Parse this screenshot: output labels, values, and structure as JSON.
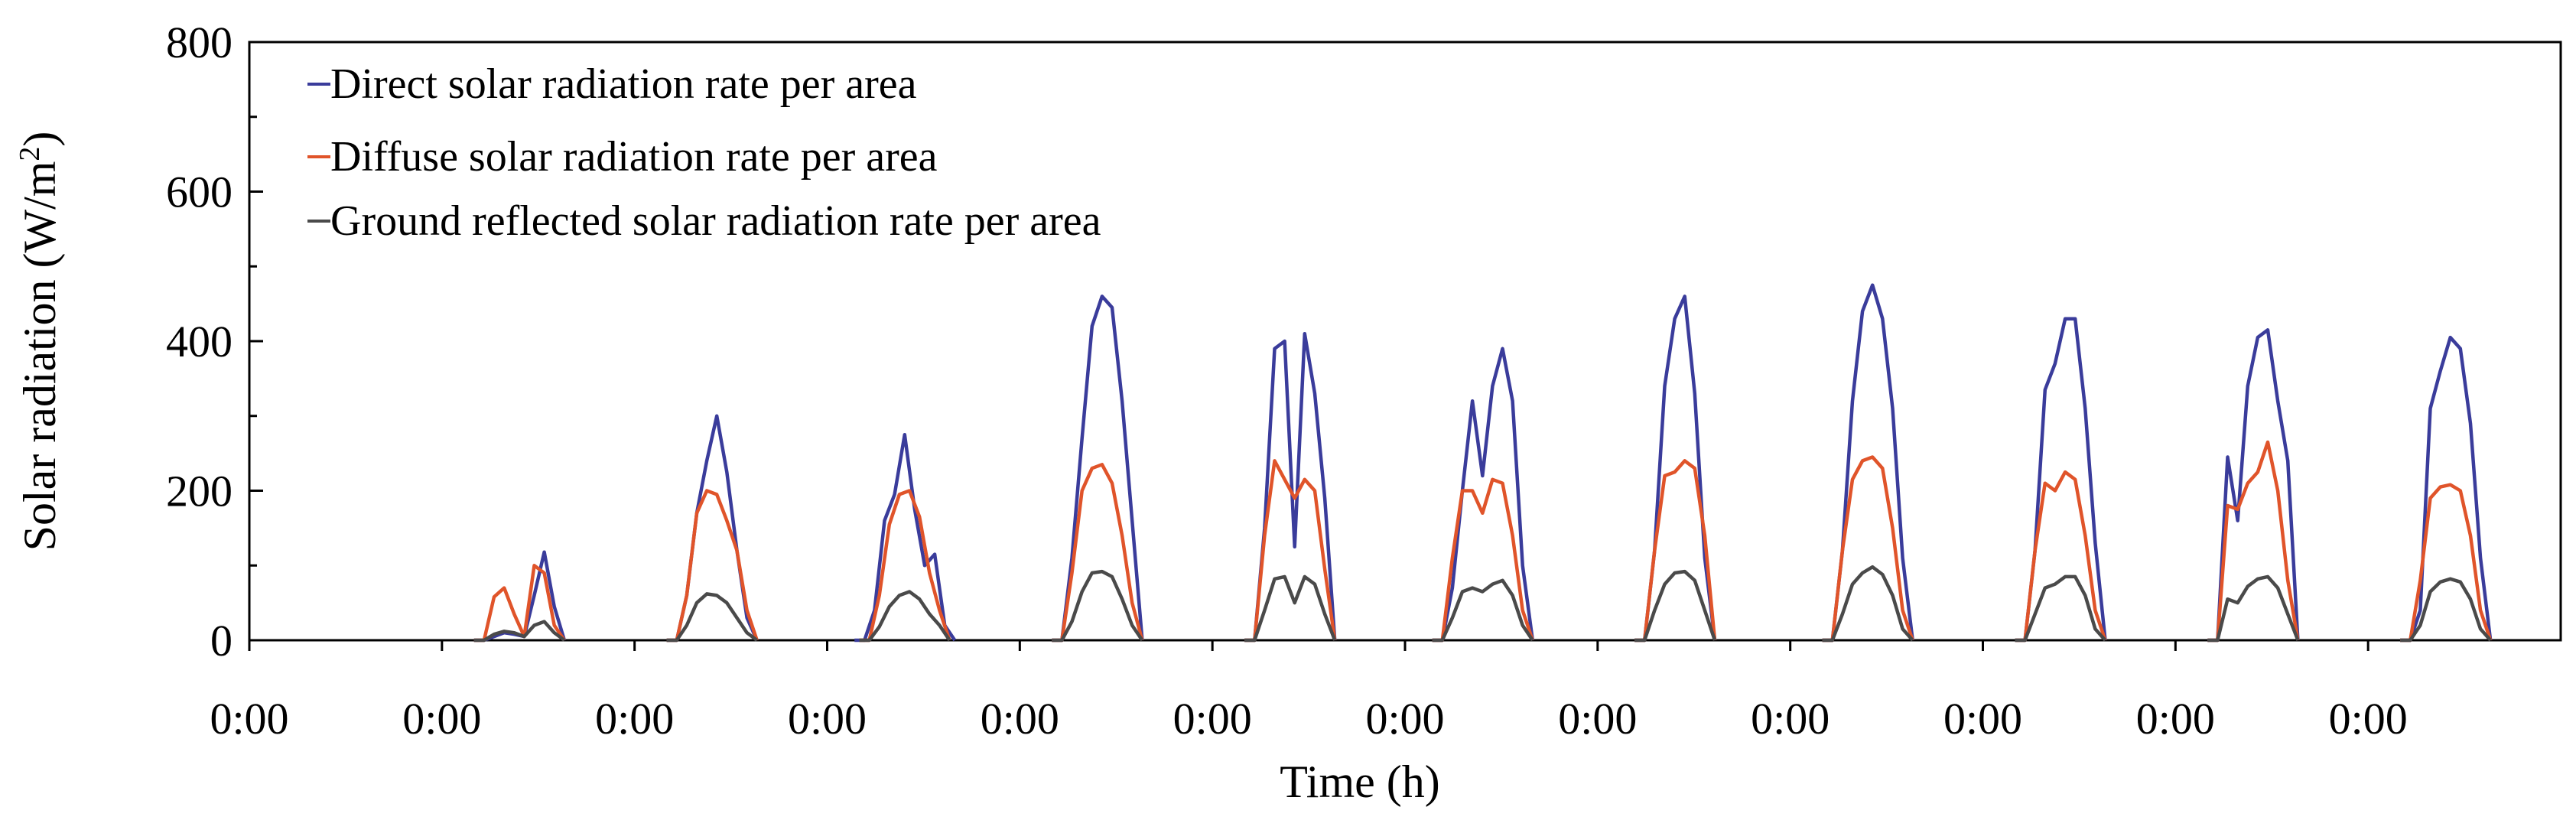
{
  "chart_data": {
    "type": "line",
    "xlabel": "Time (h)",
    "ylabel_main": "Solar radiation (W/m",
    "ylabel_sup": "2",
    "ylabel_close": ")",
    "ylim": [
      0,
      800
    ],
    "yticks": [
      0,
      200,
      400,
      600,
      800
    ],
    "xlim": [
      0,
      288
    ],
    "x_unit": "hours",
    "xtick_positions": [
      0,
      24,
      48,
      72,
      96,
      120,
      144,
      168,
      192,
      216,
      240,
      264
    ],
    "xtick_labels": [
      "0:00",
      "0:00",
      "0:00",
      "0:00",
      "0:00",
      "0:00",
      "0:00",
      "0:00",
      "0:00",
      "0:00",
      "0:00",
      "0:00"
    ],
    "grid": false,
    "legend_position": "top-left",
    "series": [
      {
        "name": "Direct solar radiation rate per area",
        "legend_main": "Direct solar radiation rate per area",
        "color": "#3a3c9b",
        "days": [
          [
            0,
            0,
            5,
            10,
            8,
            5,
            60,
            118,
            45,
            0
          ],
          [
            0,
            0,
            60,
            170,
            240,
            300,
            225,
            120,
            30,
            0
          ],
          [
            0,
            0,
            40,
            160,
            195,
            275,
            175,
            100,
            115,
            20,
            0
          ],
          [
            0,
            0,
            110,
            270,
            420,
            460,
            445,
            320,
            160,
            0
          ],
          [
            0,
            0,
            150,
            390,
            400,
            125,
            410,
            330,
            190,
            0
          ],
          [
            0,
            0,
            70,
            200,
            320,
            220,
            340,
            390,
            320,
            100,
            0
          ],
          [
            0,
            0,
            120,
            340,
            430,
            460,
            330,
            110,
            0
          ],
          [
            0,
            0,
            120,
            320,
            440,
            475,
            430,
            310,
            110,
            0
          ],
          [
            0,
            0,
            120,
            335,
            370,
            430,
            430,
            310,
            130,
            0
          ],
          [
            0,
            0,
            245,
            160,
            340,
            405,
            415,
            320,
            240,
            0
          ],
          [
            0,
            0,
            40,
            310,
            360,
            405,
            390,
            290,
            110,
            0
          ]
        ],
        "day_start_hours": [
          6,
          6,
          6,
          6,
          6,
          6,
          6,
          6,
          6,
          6,
          6
        ]
      },
      {
        "name": "Diffuse solar radiation rate per area",
        "legend_main": "Diffuse solar radiation rate per area",
        "color": "#e0542a",
        "days": [
          [
            0,
            0,
            58,
            70,
            35,
            5,
            100,
            90,
            20,
            0
          ],
          [
            0,
            0,
            60,
            170,
            200,
            195,
            160,
            120,
            40,
            0
          ],
          [
            0,
            0,
            60,
            155,
            195,
            200,
            165,
            90,
            40,
            0
          ],
          [
            0,
            0,
            90,
            200,
            230,
            235,
            210,
            140,
            50,
            0
          ],
          [
            0,
            0,
            140,
            240,
            215,
            190,
            215,
            200,
            95,
            0
          ],
          [
            0,
            0,
            110,
            200,
            200,
            170,
            215,
            210,
            140,
            40,
            0
          ],
          [
            0,
            0,
            120,
            220,
            225,
            240,
            230,
            140,
            0
          ],
          [
            0,
            0,
            120,
            215,
            240,
            245,
            230,
            150,
            40,
            0
          ],
          [
            0,
            0,
            120,
            210,
            200,
            225,
            215,
            140,
            40,
            0
          ],
          [
            0,
            0,
            180,
            175,
            210,
            225,
            265,
            200,
            80,
            0
          ],
          [
            0,
            0,
            80,
            190,
            205,
            208,
            200,
            140,
            40,
            0
          ]
        ],
        "day_start_hours": [
          6,
          6,
          6,
          6,
          6,
          6,
          6,
          6,
          6,
          6,
          6
        ]
      },
      {
        "name": "Ground reflected solar radiation rate per area",
        "legend_main": "Ground reflected solar radiation rate per area",
        "color": "#4a4a4a",
        "days": [
          [
            0,
            0,
            8,
            12,
            10,
            5,
            20,
            25,
            10,
            0
          ],
          [
            0,
            0,
            20,
            50,
            62,
            60,
            50,
            30,
            10,
            0
          ],
          [
            0,
            0,
            18,
            45,
            60,
            65,
            55,
            35,
            20,
            0
          ],
          [
            0,
            0,
            25,
            65,
            90,
            92,
            85,
            55,
            20,
            0
          ],
          [
            0,
            0,
            40,
            82,
            85,
            50,
            85,
            75,
            35,
            0
          ],
          [
            0,
            0,
            30,
            65,
            70,
            65,
            75,
            80,
            60,
            20,
            0
          ],
          [
            0,
            0,
            40,
            75,
            90,
            92,
            80,
            40,
            0
          ],
          [
            0,
            0,
            35,
            75,
            90,
            98,
            88,
            60,
            15,
            0
          ],
          [
            0,
            0,
            35,
            70,
            75,
            85,
            85,
            60,
            15,
            0
          ],
          [
            0,
            0,
            55,
            50,
            72,
            82,
            85,
            70,
            35,
            0
          ],
          [
            0,
            0,
            20,
            65,
            78,
            82,
            78,
            55,
            15,
            0
          ]
        ],
        "day_start_hours": [
          6,
          6,
          6,
          6,
          6,
          6,
          6,
          6,
          6,
          6,
          6
        ]
      }
    ]
  }
}
